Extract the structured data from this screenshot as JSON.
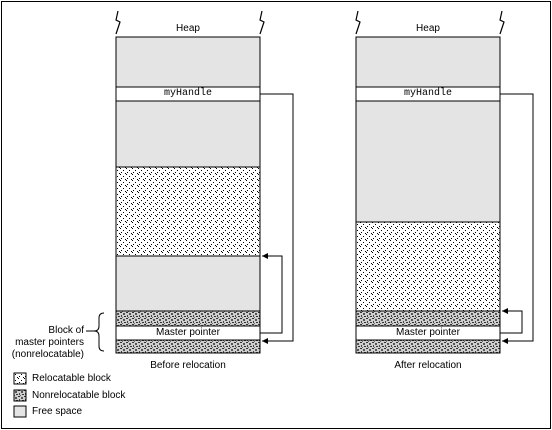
{
  "left_panel": {
    "heap_label": "Heap",
    "handle_label": "myHandle",
    "master_pointer_label": "Master pointer",
    "caption": "Before relocation"
  },
  "right_panel": {
    "heap_label": "Heap",
    "handle_label": "myHandle",
    "master_pointer_label": "Master pointer",
    "caption": "After relocation"
  },
  "side_note": {
    "line1": "Block of",
    "line2": "master pointers",
    "line3": "(nonrelocatable)"
  },
  "legend": [
    {
      "label": "Relocatable block",
      "pattern": "relocatable"
    },
    {
      "label": "Nonrelocatable block",
      "pattern": "nonrelocatable"
    },
    {
      "label": "Free space",
      "pattern": "free"
    }
  ],
  "colors": {
    "free_space": "#e4e4e4",
    "outline": "#000000",
    "background": "#ffffff"
  }
}
